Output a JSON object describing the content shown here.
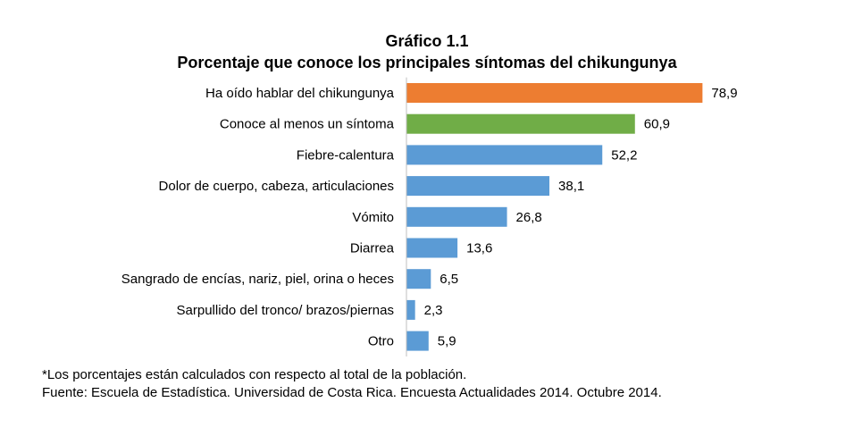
{
  "chart_data": {
    "type": "bar",
    "orientation": "horizontal",
    "title": "Gráfico 1.1",
    "subtitle": "Porcentaje que conoce los principales síntomas del  chikungunya",
    "categories": [
      "Ha oído hablar del chikungunya",
      "Conoce al menos un síntoma",
      "Fiebre-calentura",
      "Dolor de cuerpo, cabeza, articulaciones",
      "Vómito",
      "Diarrea",
      "Sangrado de encías, nariz, piel, orina o heces",
      "Sarpullido del tronco/ brazos/piernas",
      "Otro"
    ],
    "values": [
      78.9,
      60.9,
      52.2,
      38.1,
      26.8,
      13.6,
      6.5,
      2.3,
      5.9
    ],
    "value_labels": [
      "78,9",
      "60,9",
      "52,2",
      "38,1",
      "26,8",
      "13,6",
      "6,5",
      "2,3",
      "5,9"
    ],
    "bar_colors": [
      "#ED7D31",
      "#70AD47",
      "#5B9BD5",
      "#5B9BD5",
      "#5B9BD5",
      "#5B9BD5",
      "#5B9BD5",
      "#5B9BD5",
      "#5B9BD5"
    ],
    "axis_color": "#BFBFBF",
    "xlim": [
      0,
      100
    ],
    "grid": false,
    "legend": "none",
    "xlabel": "",
    "ylabel": ""
  },
  "notes": {
    "footnote": "*Los porcentajes están calculados con respecto al total de la población.",
    "source": "Fuente: Escuela de Estadística. Universidad de Costa Rica. Encuesta Actualidades 2014. Octubre 2014."
  }
}
